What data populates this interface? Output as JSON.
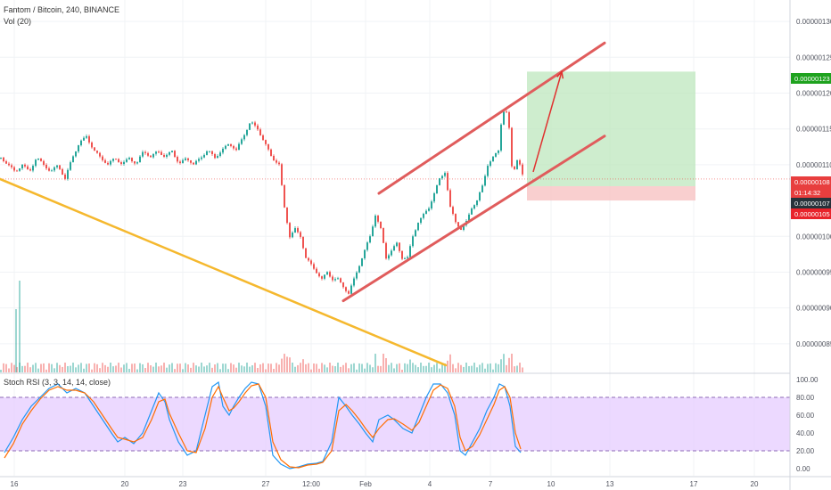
{
  "header": {
    "symbol": "Fantom / Bitcoin, 240, BINANCE",
    "volume": "Vol (20)"
  },
  "rsi": {
    "label": "Stoch RSI (3, 3, 14, 14, close)",
    "ticks": [
      "100.00",
      "80.00",
      "60.00",
      "40.00",
      "20.00",
      "0.00"
    ],
    "levels": [
      80,
      20
    ]
  },
  "price_axis": {
    "ticks": [
      "0.00000130",
      "0.00000125",
      "0.00000120",
      "0.00000115",
      "0.00000110",
      "0.00000100",
      "0.00000095",
      "0.00000090",
      "0.00000085"
    ],
    "badges": [
      {
        "value": "0.00000123",
        "color": "#1ea21e"
      },
      {
        "value": "0.00000108",
        "color": "#e83e3e"
      },
      {
        "value": "01:14:32",
        "color": "#e83e3e"
      },
      {
        "value": "0.00000107",
        "color": "#26323a"
      },
      {
        "value": "0.00000105",
        "color": "#e8232b"
      }
    ]
  },
  "time_axis": {
    "labels": [
      "16",
      "20",
      "23",
      "27",
      "12:00",
      "Feb",
      "4",
      "7",
      "10",
      "13",
      "17",
      "20"
    ]
  },
  "colors": {
    "up": "#26a69a",
    "down": "#ef5350",
    "channel": "#e05c5c",
    "trendline": "#f5b82e",
    "rsi_fill": "#e6ccff",
    "stoch_k": "#2196f3",
    "stoch_d": "#ff6d00"
  },
  "chart_data": {
    "type": "candlestick",
    "price_range": [
      8.1e-07,
      1.33e-06
    ],
    "close_path": [
      [
        0,
        1.11e-06
      ],
      [
        8,
        1.1e-06
      ],
      [
        16,
        1.09e-06
      ],
      [
        24,
        1.1e-06
      ],
      [
        32,
        1.09e-06
      ],
      [
        40,
        1.11e-06
      ],
      [
        48,
        1.1e-06
      ],
      [
        56,
        1.09e-06
      ],
      [
        64,
        1.1e-06
      ],
      [
        72,
        1.08e-06
      ],
      [
        80,
        1.11e-06
      ],
      [
        88,
        1.13e-06
      ],
      [
        96,
        1.14e-06
      ],
      [
        104,
        1.12e-06
      ],
      [
        112,
        1.11e-06
      ],
      [
        120,
        1.1e-06
      ],
      [
        128,
        1.11e-06
      ],
      [
        136,
        1.1e-06
      ],
      [
        144,
        1.11e-06
      ],
      [
        152,
        1.1e-06
      ],
      [
        160,
        1.12e-06
      ],
      [
        168,
        1.11e-06
      ],
      [
        176,
        1.12e-06
      ],
      [
        184,
        1.11e-06
      ],
      [
        192,
        1.12e-06
      ],
      [
        200,
        1.1e-06
      ],
      [
        208,
        1.11e-06
      ],
      [
        216,
        1.1e-06
      ],
      [
        224,
        1.11e-06
      ],
      [
        232,
        1.12e-06
      ],
      [
        240,
        1.11e-06
      ],
      [
        248,
        1.12e-06
      ],
      [
        256,
        1.13e-06
      ],
      [
        264,
        1.12e-06
      ],
      [
        272,
        1.14e-06
      ],
      [
        280,
        1.16e-06
      ],
      [
        288,
        1.15e-06
      ],
      [
        296,
        1.13e-06
      ],
      [
        304,
        1.11e-06
      ],
      [
        312,
        1.1e-06
      ],
      [
        318,
        1.04e-06
      ],
      [
        324,
        1e-06
      ],
      [
        330,
        1.01e-06
      ],
      [
        336,
        1e-06
      ],
      [
        342,
        9.7e-07
      ],
      [
        348,
        9.6e-07
      ],
      [
        354,
        9.5e-07
      ],
      [
        360,
        9.4e-07
      ],
      [
        366,
        9.5e-07
      ],
      [
        372,
        9.4e-07
      ],
      [
        378,
        9.4e-07
      ],
      [
        384,
        9.3e-07
      ],
      [
        390,
        9.2e-07
      ],
      [
        396,
        9.4e-07
      ],
      [
        402,
        9.6e-07
      ],
      [
        408,
        9.8e-07
      ],
      [
        414,
        1e-06
      ],
      [
        420,
        1.03e-06
      ],
      [
        426,
        1.01e-06
      ],
      [
        432,
        9.7e-07
      ],
      [
        438,
        9.8e-07
      ],
      [
        444,
        9.9e-07
      ],
      [
        450,
        9.7e-07
      ],
      [
        456,
        9.7e-07
      ],
      [
        462,
        1e-06
      ],
      [
        468,
        1.02e-06
      ],
      [
        474,
        1.03e-06
      ],
      [
        480,
        1.04e-06
      ],
      [
        486,
        1.06e-06
      ],
      [
        492,
        1.08e-06
      ],
      [
        498,
        1.09e-06
      ],
      [
        504,
        1.04e-06
      ],
      [
        510,
        1.02e-06
      ],
      [
        516,
        1.01e-06
      ],
      [
        522,
        1.02e-06
      ],
      [
        528,
        1.04e-06
      ],
      [
        534,
        1.05e-06
      ],
      [
        540,
        1.07e-06
      ],
      [
        546,
        1.1e-06
      ],
      [
        552,
        1.11e-06
      ],
      [
        558,
        1.12e-06
      ],
      [
        562,
        1.17e-06
      ],
      [
        566,
        1.18e-06
      ],
      [
        570,
        1.15e-06
      ],
      [
        574,
        1.08e-06
      ],
      [
        578,
        1.11e-06
      ],
      [
        582,
        1.1e-06
      ],
      [
        586,
        1.08e-06
      ]
    ],
    "channel_upper": [
      [
        425,
        1.06e-06
      ],
      [
        678,
        1.27e-06
      ]
    ],
    "channel_lower": [
      [
        385,
        9.1e-07
      ],
      [
        678,
        1.14e-06
      ]
    ],
    "trendline": [
      [
        0,
        1.08e-06
      ],
      [
        500,
        8.2e-07
      ]
    ],
    "target_zone": [
      1.07e-06,
      1.23e-06
    ],
    "stop_zone": [
      1.05e-06,
      1.07e-06
    ],
    "current_price": 1.08e-06,
    "projection_arrow": [
      [
        598,
        1.09e-06
      ],
      [
        630,
        1.23e-06
      ]
    ],
    "stoch_k": [
      [
        5,
        18
      ],
      [
        15,
        35
      ],
      [
        25,
        55
      ],
      [
        35,
        70
      ],
      [
        45,
        80
      ],
      [
        55,
        90
      ],
      [
        65,
        95
      ],
      [
        75,
        85
      ],
      [
        85,
        90
      ],
      [
        95,
        85
      ],
      [
        105,
        70
      ],
      [
        115,
        55
      ],
      [
        125,
        40
      ],
      [
        132,
        30
      ],
      [
        140,
        35
      ],
      [
        150,
        28
      ],
      [
        160,
        40
      ],
      [
        170,
        65
      ],
      [
        178,
        85
      ],
      [
        185,
        75
      ],
      [
        190,
        55
      ],
      [
        200,
        30
      ],
      [
        210,
        15
      ],
      [
        220,
        20
      ],
      [
        230,
        60
      ],
      [
        238,
        92
      ],
      [
        245,
        97
      ],
      [
        250,
        70
      ],
      [
        257,
        60
      ],
      [
        262,
        70
      ],
      [
        268,
        80
      ],
      [
        275,
        90
      ],
      [
        282,
        97
      ],
      [
        290,
        95
      ],
      [
        298,
        70
      ],
      [
        306,
        15
      ],
      [
        315,
        5
      ],
      [
        325,
        0
      ],
      [
        335,
        2
      ],
      [
        345,
        5
      ],
      [
        355,
        6
      ],
      [
        362,
        8
      ],
      [
        372,
        30
      ],
      [
        380,
        80
      ],
      [
        388,
        70
      ],
      [
        395,
        60
      ],
      [
        403,
        50
      ],
      [
        410,
        40
      ],
      [
        418,
        30
      ],
      [
        425,
        55
      ],
      [
        435,
        60
      ],
      [
        442,
        55
      ],
      [
        452,
        45
      ],
      [
        462,
        40
      ],
      [
        470,
        60
      ],
      [
        478,
        80
      ],
      [
        486,
        95
      ],
      [
        494,
        95
      ],
      [
        502,
        85
      ],
      [
        510,
        60
      ],
      [
        516,
        20
      ],
      [
        522,
        15
      ],
      [
        530,
        30
      ],
      [
        538,
        45
      ],
      [
        546,
        65
      ],
      [
        554,
        80
      ],
      [
        560,
        95
      ],
      [
        566,
        92
      ],
      [
        572,
        70
      ],
      [
        578,
        25
      ],
      [
        584,
        18
      ]
    ],
    "stoch_d": [
      [
        5,
        12
      ],
      [
        15,
        28
      ],
      [
        25,
        50
      ],
      [
        35,
        65
      ],
      [
        45,
        78
      ],
      [
        55,
        88
      ],
      [
        65,
        92
      ],
      [
        75,
        88
      ],
      [
        85,
        88
      ],
      [
        95,
        85
      ],
      [
        105,
        75
      ],
      [
        115,
        60
      ],
      [
        125,
        45
      ],
      [
        132,
        35
      ],
      [
        140,
        33
      ],
      [
        150,
        30
      ],
      [
        160,
        35
      ],
      [
        170,
        55
      ],
      [
        178,
        75
      ],
      [
        185,
        78
      ],
      [
        190,
        62
      ],
      [
        200,
        40
      ],
      [
        210,
        20
      ],
      [
        220,
        18
      ],
      [
        230,
        45
      ],
      [
        238,
        80
      ],
      [
        245,
        92
      ],
      [
        250,
        80
      ],
      [
        257,
        65
      ],
      [
        262,
        68
      ],
      [
        268,
        75
      ],
      [
        275,
        85
      ],
      [
        282,
        93
      ],
      [
        290,
        95
      ],
      [
        298,
        80
      ],
      [
        306,
        30
      ],
      [
        315,
        10
      ],
      [
        325,
        2
      ],
      [
        335,
        1
      ],
      [
        345,
        4
      ],
      [
        355,
        5
      ],
      [
        362,
        7
      ],
      [
        372,
        20
      ],
      [
        380,
        65
      ],
      [
        388,
        72
      ],
      [
        395,
        65
      ],
      [
        403,
        55
      ],
      [
        410,
        45
      ],
      [
        418,
        35
      ],
      [
        425,
        45
      ],
      [
        435,
        55
      ],
      [
        442,
        56
      ],
      [
        452,
        50
      ],
      [
        462,
        43
      ],
      [
        470,
        52
      ],
      [
        478,
        70
      ],
      [
        486,
        88
      ],
      [
        494,
        94
      ],
      [
        502,
        90
      ],
      [
        510,
        70
      ],
      [
        516,
        35
      ],
      [
        522,
        20
      ],
      [
        530,
        25
      ],
      [
        538,
        38
      ],
      [
        546,
        55
      ],
      [
        554,
        72
      ],
      [
        560,
        88
      ],
      [
        566,
        92
      ],
      [
        572,
        80
      ],
      [
        578,
        40
      ],
      [
        584,
        22
      ]
    ]
  }
}
